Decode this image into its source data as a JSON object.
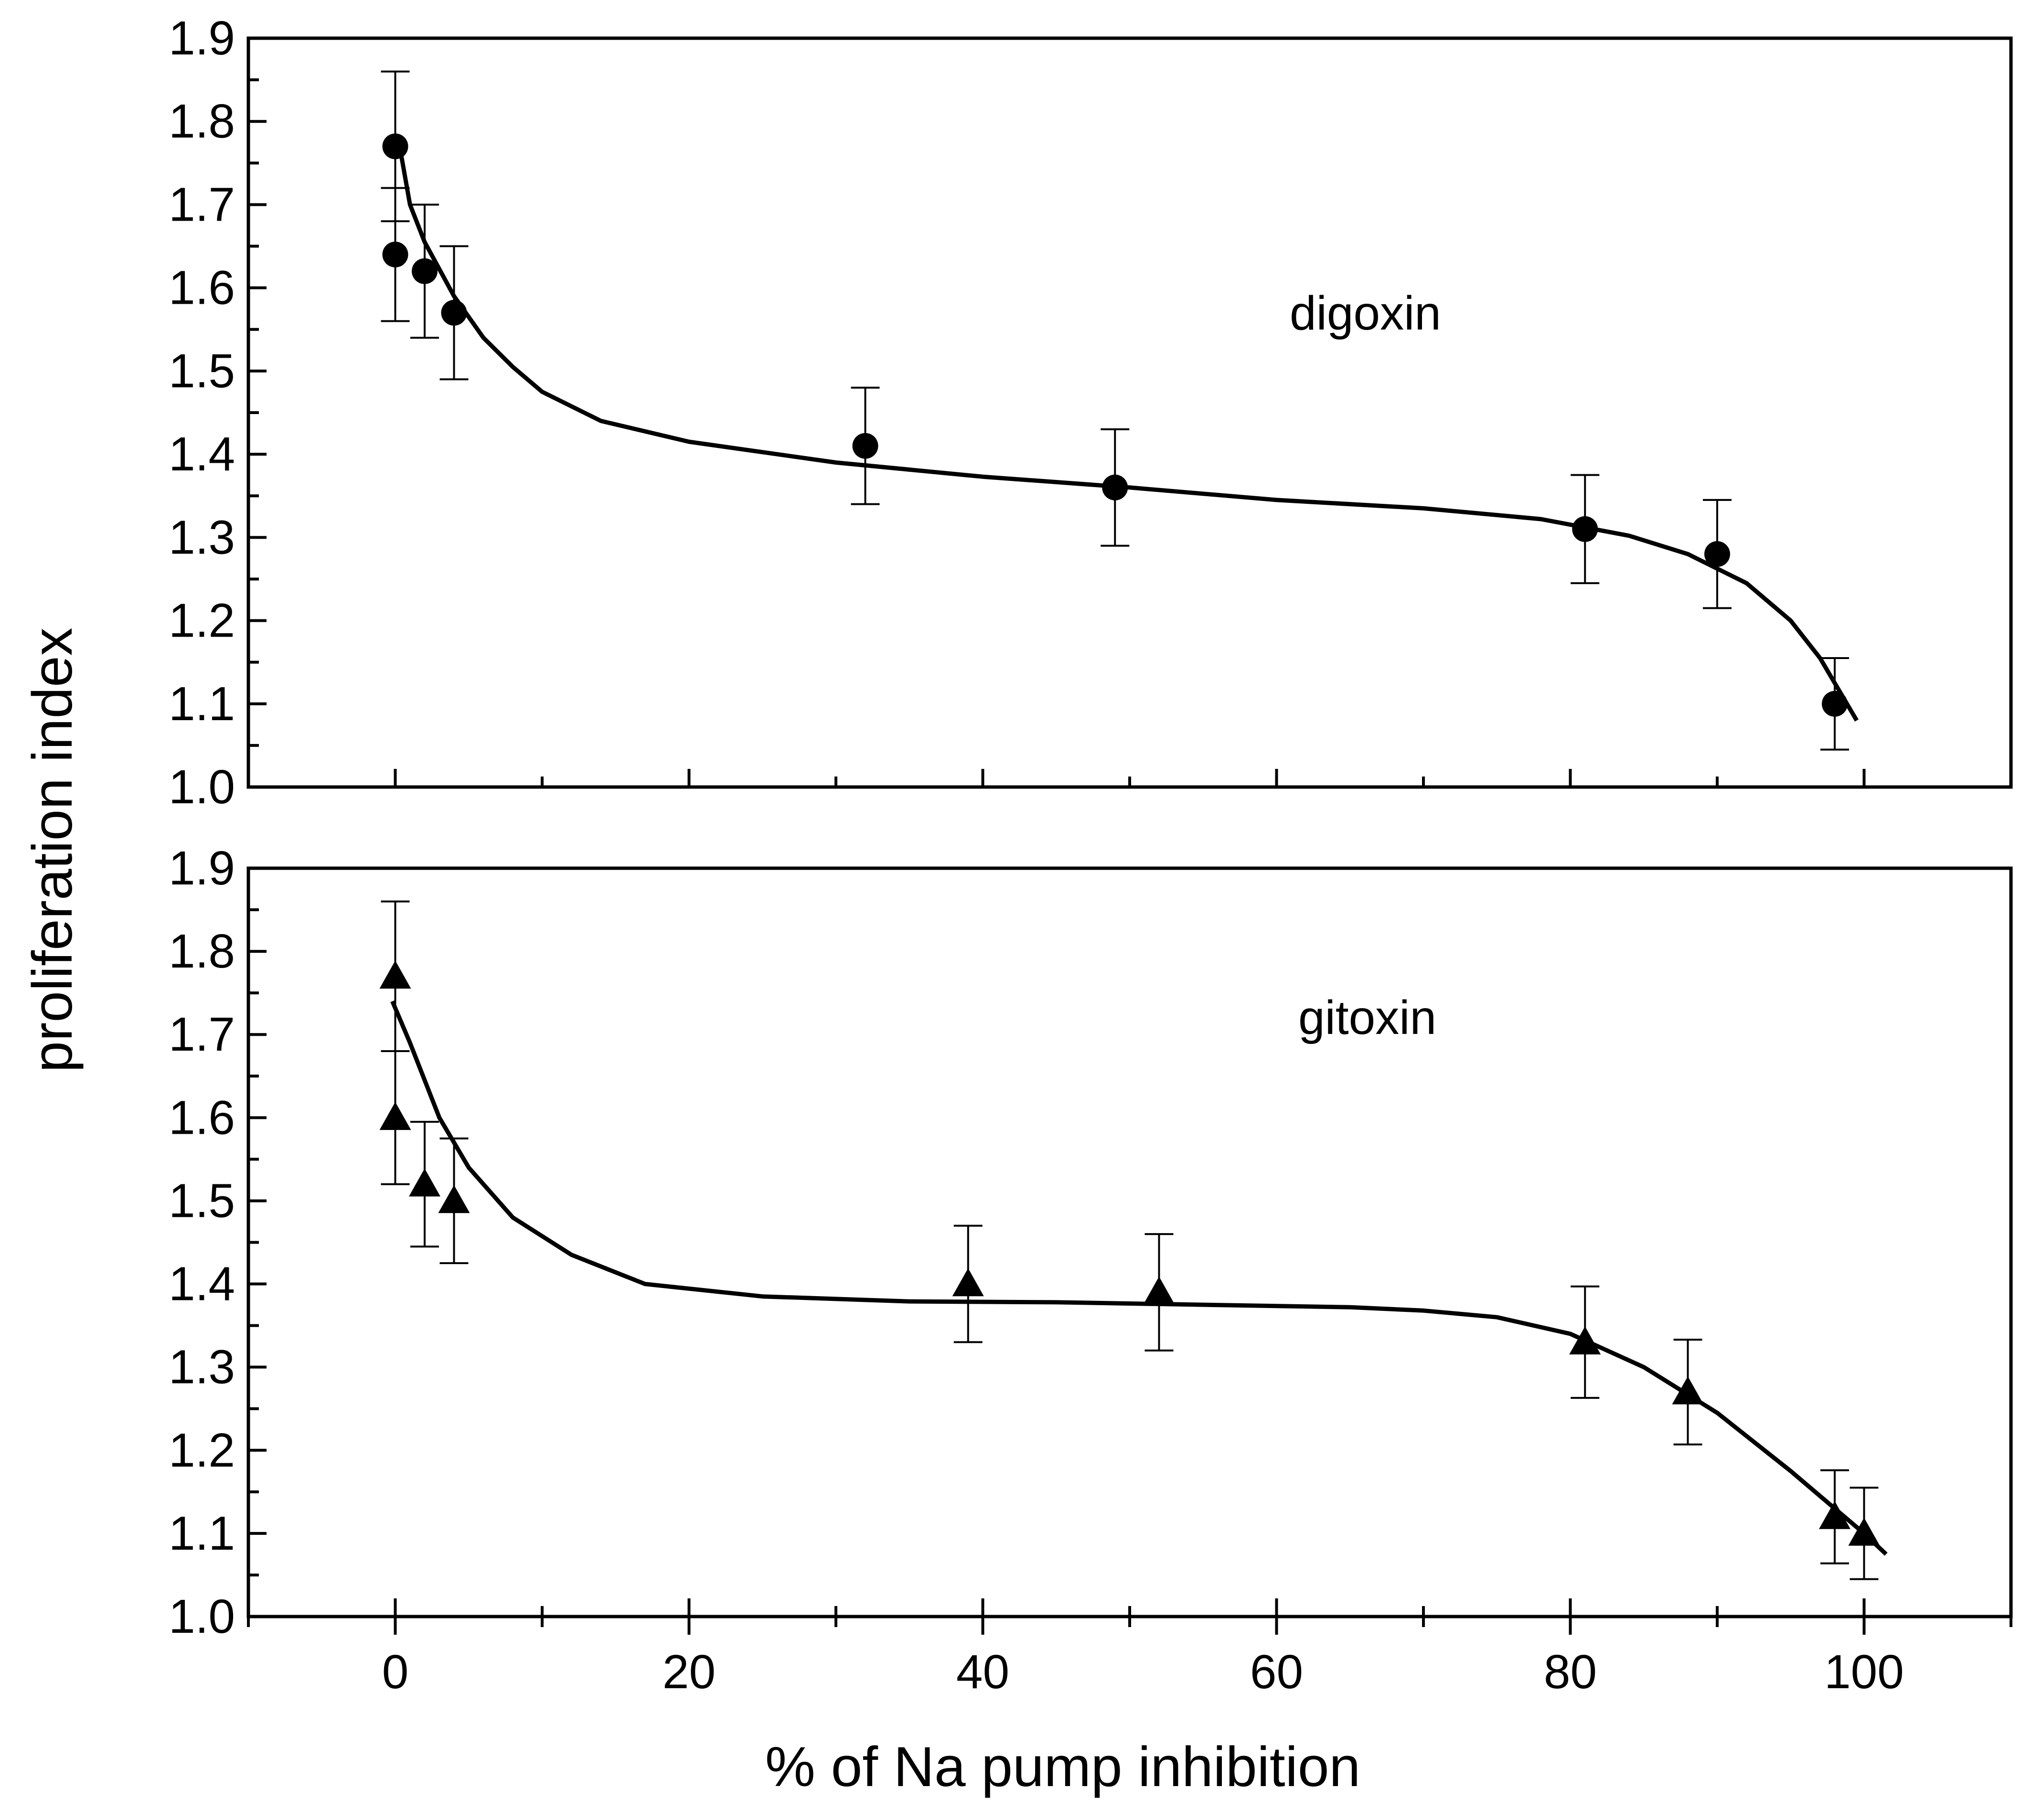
{
  "chart_data": [
    {
      "type": "scatter",
      "panel": "top",
      "title": "",
      "annotation": "digoxin",
      "xlabel": "% of Na pump inhibition",
      "ylabel": "proliferation index",
      "xlim": [
        -10,
        110
      ],
      "ylim": [
        1.0,
        1.9
      ],
      "xticks": [
        "0",
        "20",
        "40",
        "60",
        "80",
        "100"
      ],
      "yticks": [
        "1.0",
        "1.1",
        "1.2",
        "1.3",
        "1.4",
        "1.5",
        "1.6",
        "1.7",
        "1.8",
        "1.9"
      ],
      "marker": "circle",
      "points": [
        {
          "x": 0,
          "y": 1.77,
          "err": 0.09
        },
        {
          "x": 0,
          "y": 1.64,
          "err": 0.08
        },
        {
          "x": 2,
          "y": 1.62,
          "err": 0.08
        },
        {
          "x": 4,
          "y": 1.57,
          "err": 0.08
        },
        {
          "x": 32,
          "y": 1.41,
          "err": 0.07
        },
        {
          "x": 49,
          "y": 1.36,
          "err": 0.07
        },
        {
          "x": 81,
          "y": 1.31,
          "err": 0.065
        },
        {
          "x": 90,
          "y": 1.28,
          "err": 0.065
        },
        {
          "x": 98,
          "y": 1.1,
          "err": 0.055
        }
      ],
      "fit": [
        [
          0.3,
          1.77
        ],
        [
          1,
          1.7
        ],
        [
          2,
          1.655
        ],
        [
          4,
          1.59
        ],
        [
          6,
          1.54
        ],
        [
          8,
          1.505
        ],
        [
          10,
          1.475
        ],
        [
          14,
          1.44
        ],
        [
          20,
          1.415
        ],
        [
          30,
          1.39
        ],
        [
          40,
          1.373
        ],
        [
          50,
          1.36
        ],
        [
          60,
          1.345
        ],
        [
          70,
          1.335
        ],
        [
          78,
          1.322
        ],
        [
          84,
          1.302
        ],
        [
          88,
          1.28
        ],
        [
          92,
          1.245
        ],
        [
          95,
          1.2
        ],
        [
          97,
          1.155
        ],
        [
          98.5,
          1.11
        ],
        [
          99.5,
          1.08
        ]
      ]
    },
    {
      "type": "scatter",
      "panel": "bottom",
      "title": "",
      "annotation": "gitoxin",
      "xlabel": "% of Na pump inhibition",
      "ylabel": "proliferation index",
      "xlim": [
        -10,
        110
      ],
      "ylim": [
        1.0,
        1.9
      ],
      "xticks": [
        "0",
        "20",
        "40",
        "60",
        "80",
        "100"
      ],
      "yticks": [
        "1.0",
        "1.1",
        "1.2",
        "1.3",
        "1.4",
        "1.5",
        "1.6",
        "1.7",
        "1.8",
        "1.9"
      ],
      "marker": "triangle",
      "points": [
        {
          "x": 0,
          "y": 1.77,
          "err": 0.09
        },
        {
          "x": 0,
          "y": 1.6,
          "err": 0.08
        },
        {
          "x": 2,
          "y": 1.52,
          "err": 0.075
        },
        {
          "x": 4,
          "y": 1.5,
          "err": 0.075
        },
        {
          "x": 39,
          "y": 1.4,
          "err": 0.07
        },
        {
          "x": 52,
          "y": 1.39,
          "err": 0.07
        },
        {
          "x": 81,
          "y": 1.33,
          "err": 0.067
        },
        {
          "x": 88,
          "y": 1.27,
          "err": 0.063
        },
        {
          "x": 98,
          "y": 1.12,
          "err": 0.056
        },
        {
          "x": 100,
          "y": 1.1,
          "err": 0.055
        }
      ],
      "fit": [
        [
          -0.2,
          1.74
        ],
        [
          1,
          1.69
        ],
        [
          3,
          1.6
        ],
        [
          5,
          1.54
        ],
        [
          8,
          1.48
        ],
        [
          12,
          1.435
        ],
        [
          17,
          1.4
        ],
        [
          25,
          1.385
        ],
        [
          35,
          1.379
        ],
        [
          45,
          1.378
        ],
        [
          55,
          1.375
        ],
        [
          65,
          1.372
        ],
        [
          70,
          1.368
        ],
        [
          75,
          1.36
        ],
        [
          80,
          1.34
        ],
        [
          85,
          1.3
        ],
        [
          90,
          1.245
        ],
        [
          95,
          1.175
        ],
        [
          98,
          1.13
        ],
        [
          100,
          1.1
        ],
        [
          101.5,
          1.075
        ]
      ]
    }
  ]
}
